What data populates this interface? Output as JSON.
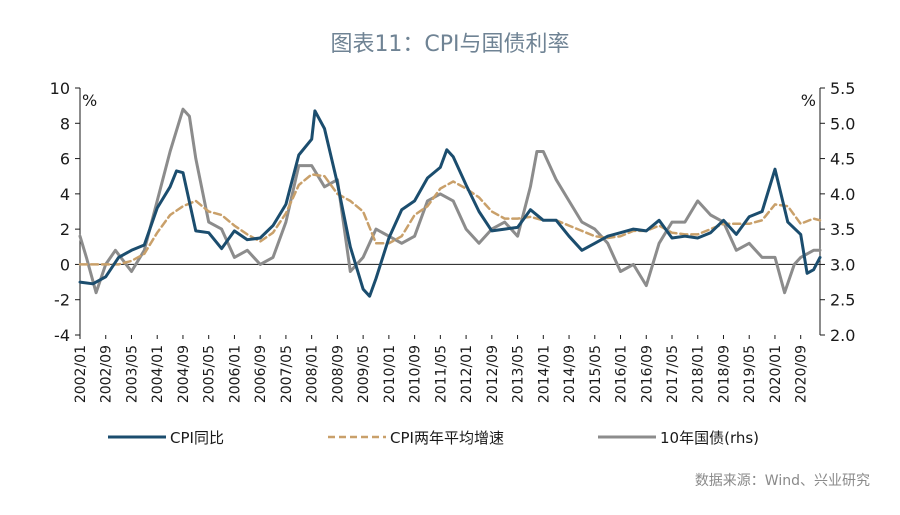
{
  "title": "图表11：CPI与国债利率",
  "source": "数据来源：Wind、兴业研究",
  "colors": {
    "cpi": "#1b4d6e",
    "cpi2y": "#c9a06a",
    "bond": "#8c8c8c",
    "axis": "#1a1a1a"
  },
  "chart_data": {
    "type": "line",
    "title": "图表11：CPI与国债利率",
    "y_unit_left": "%",
    "y_unit_right": "%",
    "ylim_left": [
      -4,
      10
    ],
    "yticks_left": [
      -4,
      -2,
      0,
      2,
      4,
      6,
      8,
      10
    ],
    "ylim_right": [
      2.0,
      5.5
    ],
    "yticks_right": [
      "2.0",
      "2.5",
      "3.0",
      "3.5",
      "4.0",
      "4.5",
      "5.0",
      "5.5"
    ],
    "x_ticks": [
      "2002/01",
      "2002/09",
      "2003/05",
      "2004/01",
      "2004/09",
      "2005/05",
      "2006/01",
      "2006/09",
      "2007/05",
      "2008/01",
      "2008/09",
      "2009/05",
      "2010/01",
      "2010/09",
      "2011/05",
      "2012/01",
      "2012/09",
      "2013/05",
      "2014/01",
      "2014/09",
      "2015/05",
      "2016/01",
      "2016/09",
      "2017/05",
      "2018/01",
      "2018/09",
      "2019/05",
      "2020/01",
      "2020/09"
    ],
    "legend_position": "bottom",
    "series": [
      {
        "name": "CPI同比",
        "axis": "left",
        "style": "solid",
        "x": [
          "2002/01",
          "2002/05",
          "2002/09",
          "2003/01",
          "2003/05",
          "2003/09",
          "2004/01",
          "2004/05",
          "2004/07",
          "2004/09",
          "2005/01",
          "2005/05",
          "2005/09",
          "2006/01",
          "2006/05",
          "2006/09",
          "2007/01",
          "2007/05",
          "2007/09",
          "2008/01",
          "2008/02",
          "2008/05",
          "2008/09",
          "2009/01",
          "2009/05",
          "2009/07",
          "2009/09",
          "2010/01",
          "2010/05",
          "2010/09",
          "2011/01",
          "2011/05",
          "2011/07",
          "2011/09",
          "2012/01",
          "2012/05",
          "2012/09",
          "2013/01",
          "2013/05",
          "2013/09",
          "2014/01",
          "2014/05",
          "2014/09",
          "2015/01",
          "2015/05",
          "2015/09",
          "2016/01",
          "2016/05",
          "2016/09",
          "2017/01",
          "2017/05",
          "2017/09",
          "2018/01",
          "2018/05",
          "2018/09",
          "2019/01",
          "2019/05",
          "2019/09",
          "2020/01",
          "2020/05",
          "2020/09",
          "2020/11",
          "2021/01",
          "2021/03"
        ],
        "y": [
          -1.0,
          -1.1,
          -0.7,
          0.4,
          0.8,
          1.1,
          3.2,
          4.4,
          5.3,
          5.2,
          1.9,
          1.8,
          0.9,
          1.9,
          1.4,
          1.5,
          2.2,
          3.4,
          6.2,
          7.1,
          8.7,
          7.7,
          4.6,
          1.0,
          -1.4,
          -1.8,
          -0.8,
          1.5,
          3.1,
          3.6,
          4.9,
          5.5,
          6.5,
          6.1,
          4.5,
          3.0,
          1.9,
          2.0,
          2.1,
          3.1,
          2.5,
          2.5,
          1.6,
          0.8,
          1.2,
          1.6,
          1.8,
          2.0,
          1.9,
          2.5,
          1.5,
          1.6,
          1.5,
          1.8,
          2.5,
          1.7,
          2.7,
          3.0,
          5.4,
          2.4,
          1.7,
          -0.5,
          -0.3,
          0.4
        ]
      },
      {
        "name": "CPI两年平均增速",
        "axis": "left",
        "style": "dashed",
        "x": [
          "2002/01",
          "2003/01",
          "2003/05",
          "2003/09",
          "2004/01",
          "2004/05",
          "2004/09",
          "2005/01",
          "2005/05",
          "2005/09",
          "2006/01",
          "2006/05",
          "2006/09",
          "2007/01",
          "2007/05",
          "2007/09",
          "2008/01",
          "2008/05",
          "2008/09",
          "2009/01",
          "2009/05",
          "2009/09",
          "2010/01",
          "2010/05",
          "2010/09",
          "2011/01",
          "2011/05",
          "2011/09",
          "2012/01",
          "2012/05",
          "2012/09",
          "2013/01",
          "2013/05",
          "2013/09",
          "2014/01",
          "2014/05",
          "2014/09",
          "2015/01",
          "2015/05",
          "2015/09",
          "2016/01",
          "2016/05",
          "2016/09",
          "2017/01",
          "2017/05",
          "2017/09",
          "2018/01",
          "2018/05",
          "2018/09",
          "2019/01",
          "2019/05",
          "2019/09",
          "2020/01",
          "2020/05",
          "2020/09",
          "2021/01",
          "2021/03"
        ],
        "y": [
          0.0,
          0.0,
          0.2,
          0.6,
          1.8,
          2.8,
          3.3,
          3.6,
          3.0,
          2.8,
          2.2,
          1.7,
          1.3,
          1.8,
          2.9,
          4.5,
          5.1,
          5.0,
          4.0,
          3.6,
          3.0,
          1.2,
          1.2,
          1.6,
          2.8,
          3.3,
          4.3,
          4.7,
          4.3,
          3.8,
          3.0,
          2.6,
          2.6,
          2.7,
          2.5,
          2.5,
          2.2,
          1.9,
          1.6,
          1.5,
          1.6,
          1.9,
          1.9,
          2.2,
          1.8,
          1.7,
          1.7,
          2.0,
          2.3,
          2.3,
          2.3,
          2.5,
          3.4,
          3.3,
          2.3,
          2.6,
          2.5
        ]
      },
      {
        "name": "10年国债(rhs)",
        "axis": "right",
        "style": "solid",
        "x": [
          "2002/01",
          "2002/03",
          "2002/06",
          "2002/09",
          "2002/12",
          "2003/05",
          "2003/09",
          "2004/01",
          "2004/05",
          "2004/09",
          "2004/11",
          "2005/01",
          "2005/05",
          "2005/09",
          "2006/01",
          "2006/05",
          "2006/09",
          "2007/01",
          "2007/05",
          "2007/09",
          "2008/01",
          "2008/05",
          "2008/09",
          "2009/01",
          "2009/05",
          "2009/09",
          "2010/01",
          "2010/05",
          "2010/09",
          "2011/01",
          "2011/05",
          "2011/09",
          "2012/01",
          "2012/05",
          "2012/09",
          "2013/01",
          "2013/05",
          "2013/09",
          "2013/11",
          "2014/01",
          "2014/05",
          "2014/09",
          "2015/01",
          "2015/05",
          "2015/09",
          "2016/01",
          "2016/05",
          "2016/09",
          "2017/01",
          "2017/05",
          "2017/09",
          "2018/01",
          "2018/05",
          "2018/09",
          "2019/01",
          "2019/05",
          "2019/09",
          "2020/01",
          "2020/04",
          "2020/07",
          "2020/09",
          "2021/01",
          "2021/03"
        ],
        "y": [
          3.4,
          3.1,
          2.6,
          3.0,
          3.2,
          2.9,
          3.2,
          3.9,
          4.6,
          5.2,
          5.1,
          4.5,
          3.6,
          3.5,
          3.1,
          3.2,
          3.0,
          3.1,
          3.6,
          4.4,
          4.4,
          4.1,
          4.2,
          2.9,
          3.1,
          3.5,
          3.4,
          3.3,
          3.4,
          3.9,
          4.0,
          3.9,
          3.5,
          3.3,
          3.5,
          3.6,
          3.4,
          4.1,
          4.6,
          4.6,
          4.2,
          3.9,
          3.6,
          3.5,
          3.3,
          2.9,
          3.0,
          2.7,
          3.3,
          3.6,
          3.6,
          3.9,
          3.7,
          3.6,
          3.2,
          3.3,
          3.1,
          3.1,
          2.6,
          3.0,
          3.1,
          3.2,
          3.2
        ]
      }
    ],
    "legend": [
      "CPI同比",
      "CPI两年平均增速",
      "10年国债(rhs)"
    ]
  }
}
